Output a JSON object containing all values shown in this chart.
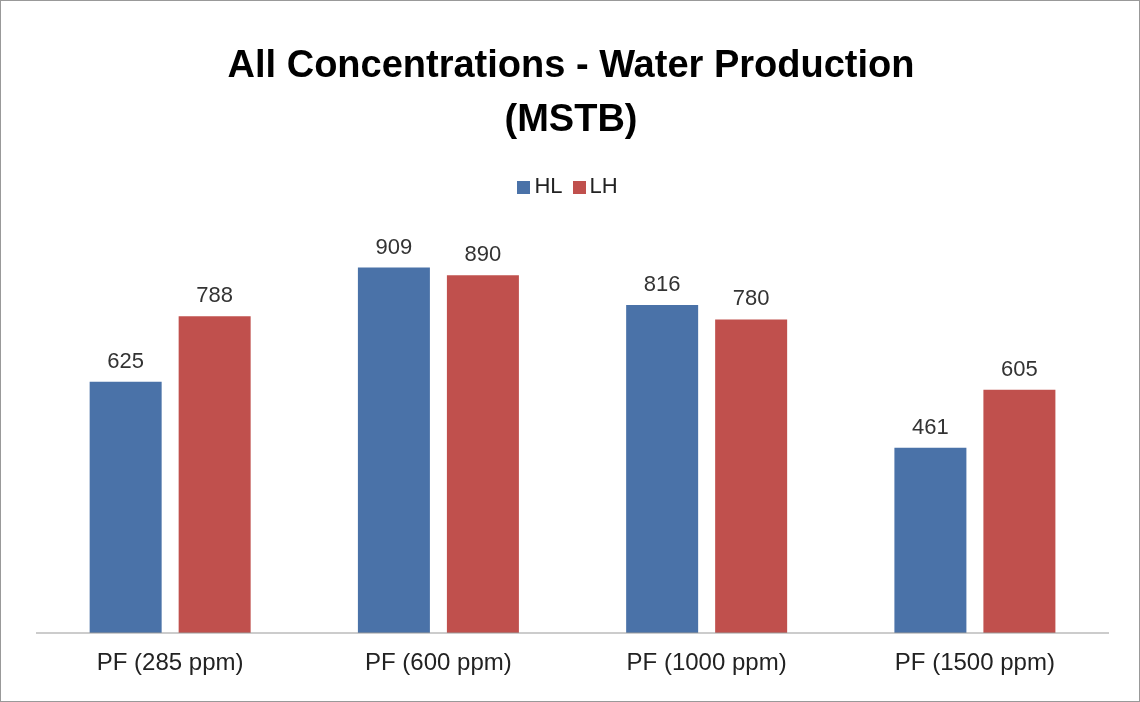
{
  "chart_data": {
    "type": "bar",
    "title": "All Concentrations - Water Production (MSTB)",
    "categories": [
      "PF (285 ppm)",
      "PF (600 ppm)",
      "PF (1000 ppm)",
      "PF (1500 ppm)"
    ],
    "series": [
      {
        "name": "HL",
        "color": "#4a72a8",
        "values": [
          625,
          909,
          816,
          461
        ]
      },
      {
        "name": "LH",
        "color": "#c0504d",
        "values": [
          788,
          890,
          780,
          605
        ]
      }
    ],
    "data_labels": true,
    "legend": "top",
    "grid": false
  }
}
